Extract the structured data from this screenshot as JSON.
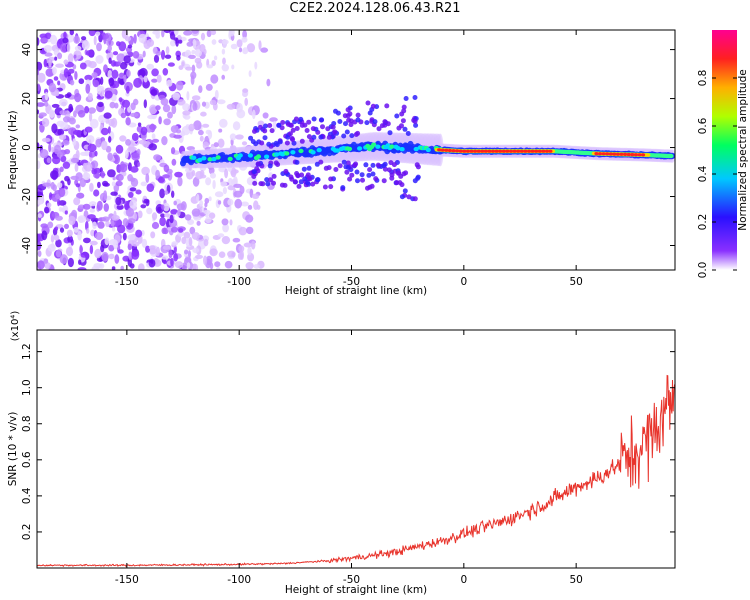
{
  "title": "C2E2.2024.128.06.43.R21",
  "chart_data": [
    {
      "type": "heatmap",
      "xlabel": "Height of straight line (km)",
      "ylabel": "Frequency (Hz)",
      "xlim": [
        -190,
        94
      ],
      "ylim": [
        -50,
        48
      ],
      "xticks": [
        -150,
        -100,
        -50,
        0,
        50
      ],
      "yticks": [
        -40,
        -20,
        0,
        20,
        40
      ],
      "colorbar": {
        "label": "Normalized spectral amplitude",
        "range": [
          0,
          1
        ],
        "ticks": [
          "0.0",
          "0.2",
          "0.4",
          "0.6",
          "0.8"
        ],
        "colors": [
          "#ffffff",
          "#6a00ff",
          "#0030ff",
          "#00d0ff",
          "#00ff60",
          "#c0ff00",
          "#ffb000",
          "#ff2020",
          "#ff0090"
        ]
      },
      "band": [
        {
          "x": -125,
          "y": -5.0
        },
        {
          "x": -100,
          "y": -4.0
        },
        {
          "x": -80,
          "y": -2.5
        },
        {
          "x": -60,
          "y": -1.0
        },
        {
          "x": -40,
          "y": 0.5
        },
        {
          "x": -20,
          "y": -0.5
        },
        {
          "x": 0,
          "y": -1.5
        },
        {
          "x": 20,
          "y": -1.5
        },
        {
          "x": 40,
          "y": -1.5
        },
        {
          "x": 60,
          "y": -2.5
        },
        {
          "x": 80,
          "y": -3.0
        },
        {
          "x": 93,
          "y": -3.5
        }
      ],
      "peak_segments": [
        [
          -12,
          40
        ],
        [
          58,
          82
        ]
      ]
    },
    {
      "type": "line",
      "xlabel": "Height of straight line (km)",
      "ylabel": "SNR (10 * v/v)",
      "y_multiplier": "(x10⁴)",
      "xlim": [
        -190,
        94
      ],
      "ylim": [
        0,
        1.32
      ],
      "xticks": [
        -150,
        -100,
        -50,
        0,
        50
      ],
      "yticks": [
        0.2,
        0.4,
        0.6,
        0.8,
        1.0,
        1.2
      ],
      "color": "#e8342c",
      "series": [
        {
          "x": -190,
          "y": 0.015
        },
        {
          "x": -150,
          "y": 0.015
        },
        {
          "x": -120,
          "y": 0.018
        },
        {
          "x": -100,
          "y": 0.02
        },
        {
          "x": -80,
          "y": 0.025
        },
        {
          "x": -60,
          "y": 0.04
        },
        {
          "x": -50,
          "y": 0.055
        },
        {
          "x": -40,
          "y": 0.07
        },
        {
          "x": -30,
          "y": 0.09
        },
        {
          "x": -20,
          "y": 0.12
        },
        {
          "x": -10,
          "y": 0.15
        },
        {
          "x": 0,
          "y": 0.19
        },
        {
          "x": 10,
          "y": 0.23
        },
        {
          "x": 20,
          "y": 0.27
        },
        {
          "x": 30,
          "y": 0.32
        },
        {
          "x": 40,
          "y": 0.38
        },
        {
          "x": 50,
          "y": 0.45
        },
        {
          "x": 60,
          "y": 0.5
        },
        {
          "x": 66,
          "y": 0.55
        },
        {
          "x": 75,
          "y": 0.62
        },
        {
          "x": 85,
          "y": 0.75
        },
        {
          "x": 90,
          "y": 0.9
        },
        {
          "x": 94,
          "y": 0.95
        }
      ]
    }
  ]
}
